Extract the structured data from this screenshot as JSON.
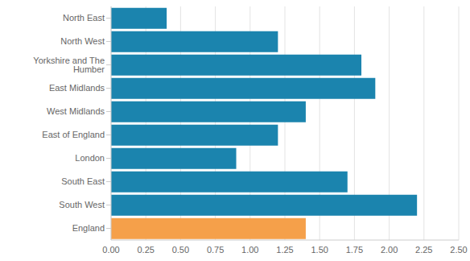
{
  "chart_data": {
    "type": "bar",
    "orientation": "horizontal",
    "categories": [
      "North East",
      "North West",
      "Yorkshire and The Humber",
      "East Midlands",
      "West Midlands",
      "East of England",
      "London",
      "South East",
      "South West",
      "England"
    ],
    "values": [
      0.4,
      1.2,
      1.8,
      1.9,
      1.4,
      1.2,
      0.9,
      1.7,
      2.2,
      1.4
    ],
    "colors": [
      "#1b84ae",
      "#1b84ae",
      "#1b84ae",
      "#1b84ae",
      "#1b84ae",
      "#1b84ae",
      "#1b84ae",
      "#1b84ae",
      "#1b84ae",
      "#f5a04a"
    ],
    "xlim": [
      0,
      2.5
    ],
    "xticks": [
      {
        "value": 0,
        "label": "0.00"
      },
      {
        "value": 0.25,
        "label": "0.25"
      },
      {
        "value": 0.5,
        "label": "0.50"
      },
      {
        "value": 0.75,
        "label": "0.75"
      },
      {
        "value": 1,
        "label": "1.00"
      },
      {
        "value": 1.25,
        "label": "1.25"
      },
      {
        "value": 1.5,
        "label": "1.50"
      },
      {
        "value": 1.75,
        "label": "1.75"
      },
      {
        "value": 2,
        "label": "2.00"
      },
      {
        "value": 2.25,
        "label": "2.25"
      },
      {
        "value": 2.5,
        "label": "2.50"
      }
    ],
    "grid": true
  }
}
